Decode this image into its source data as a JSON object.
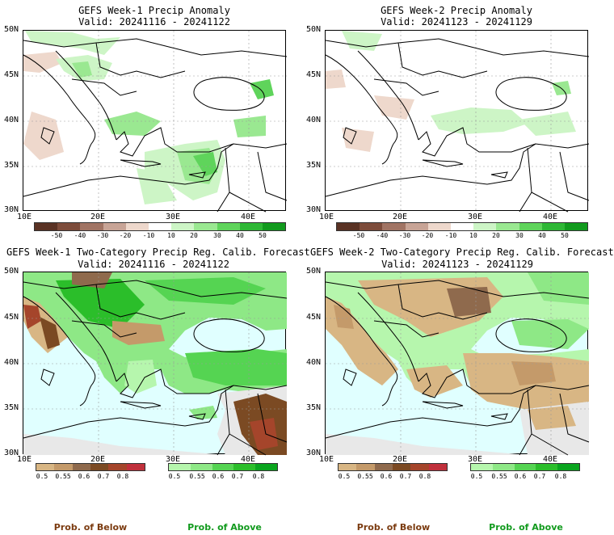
{
  "panels": [
    {
      "title_line1": "GEFS Week-1 Precip Anomaly",
      "title_line2": "Valid: 20241116 - 20241122"
    },
    {
      "title_line1": "GEFS Week-2 Precip Anomaly",
      "title_line2": "Valid: 20241123 - 20241129"
    },
    {
      "title_line1": "GEFS Week-1 Two-Category Precip Reg. Calib. Forecast",
      "title_line2": "Valid: 20241116 - 20241122"
    },
    {
      "title_line1": "GEFS Week-2 Two-Category Precip Reg. Calib. Forecast",
      "title_line2": "Valid: 20241123 - 20241129"
    }
  ],
  "lat_labels": [
    "50N",
    "45N",
    "40N",
    "35N",
    "30N"
  ],
  "lon_labels": [
    "10E",
    "20E",
    "30E",
    "40E"
  ],
  "anomaly_colorbar": {
    "ticks": [
      "-50",
      "-40",
      "-30",
      "-20",
      "-10",
      "10",
      "20",
      "30",
      "40",
      "50"
    ],
    "colors": [
      "#5a3224",
      "#7d4c3b",
      "#a17464",
      "#c8a496",
      "#eed8cc",
      "#ffffff",
      "#cdf5c6",
      "#9ae891",
      "#5fd45b",
      "#2eb735",
      "#119a1d"
    ]
  },
  "below_colorbar": {
    "ticks": [
      "0.5",
      "0.55",
      "0.6",
      "0.7",
      "0.8"
    ],
    "colors": [
      "#d8b684",
      "#c49a6a",
      "#8f6a4d",
      "#7b4a23",
      "#a5452b",
      "#c0303c"
    ],
    "label": "Prob. of Below"
  },
  "above_colorbar": {
    "ticks": [
      "0.5",
      "0.55",
      "0.6",
      "0.7",
      "0.8"
    ],
    "colors": [
      "#b6f6ad",
      "#8ee886",
      "#55d452",
      "#2bbe2a",
      "#0aa51e"
    ],
    "label": "Prob. of Above"
  },
  "colors": {
    "water": "#e0ffff",
    "nodata": "#e8e8e8",
    "label_brown": "#7b3b10",
    "label_green": "#119a1d"
  }
}
